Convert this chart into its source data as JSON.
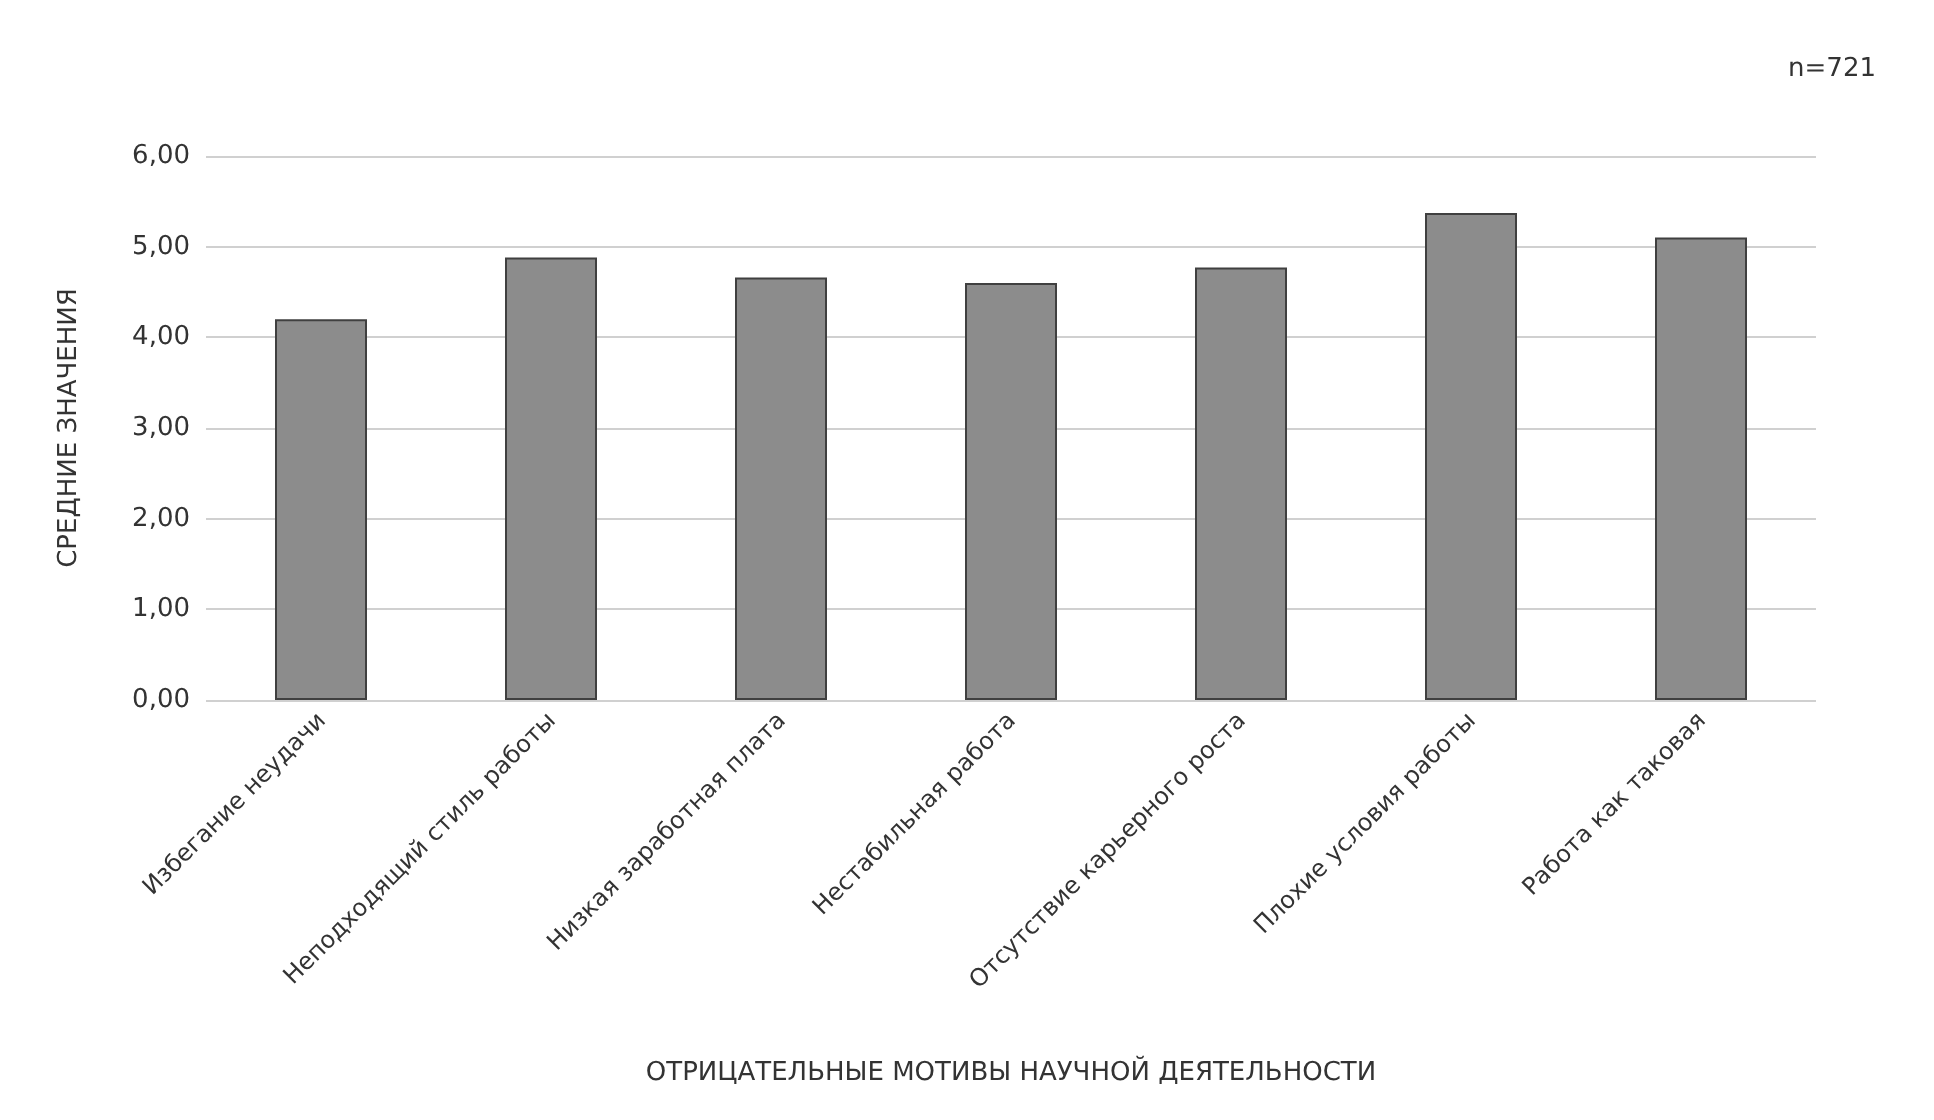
{
  "chart_data": {
    "type": "bar",
    "categories": [
      "Избегание неудачи",
      "Неподходящий стиль работы",
      "Низкая заработная плата",
      "Нестабильная работа",
      "Отсутствие карьерного роста",
      "Плохие условия работы",
      "Работа как таковая"
    ],
    "values": [
      4.2,
      4.88,
      4.66,
      4.6,
      4.77,
      5.37,
      5.1
    ],
    "color": "#8c8c8c",
    "xlabel": "ОТРИЦАТЕЛЬНЫЕ МОТИВЫ НАУЧНОЙ ДЕЯТЕЛЬНОСТИ",
    "ylabel": "СРЕДНИЕ ЗНАЧЕНИЯ",
    "ylim": [
      0,
      6
    ],
    "yticks": [
      {
        "value": 0,
        "label": "0,00"
      },
      {
        "value": 1,
        "label": "1,00"
      },
      {
        "value": 2,
        "label": "2,00"
      },
      {
        "value": 3,
        "label": "3,00"
      },
      {
        "value": 4,
        "label": "4,00"
      },
      {
        "value": 5,
        "label": "5,00"
      },
      {
        "value": 6,
        "label": "6,00"
      }
    ],
    "grid": "y",
    "annotations": [
      "n=721"
    ]
  }
}
